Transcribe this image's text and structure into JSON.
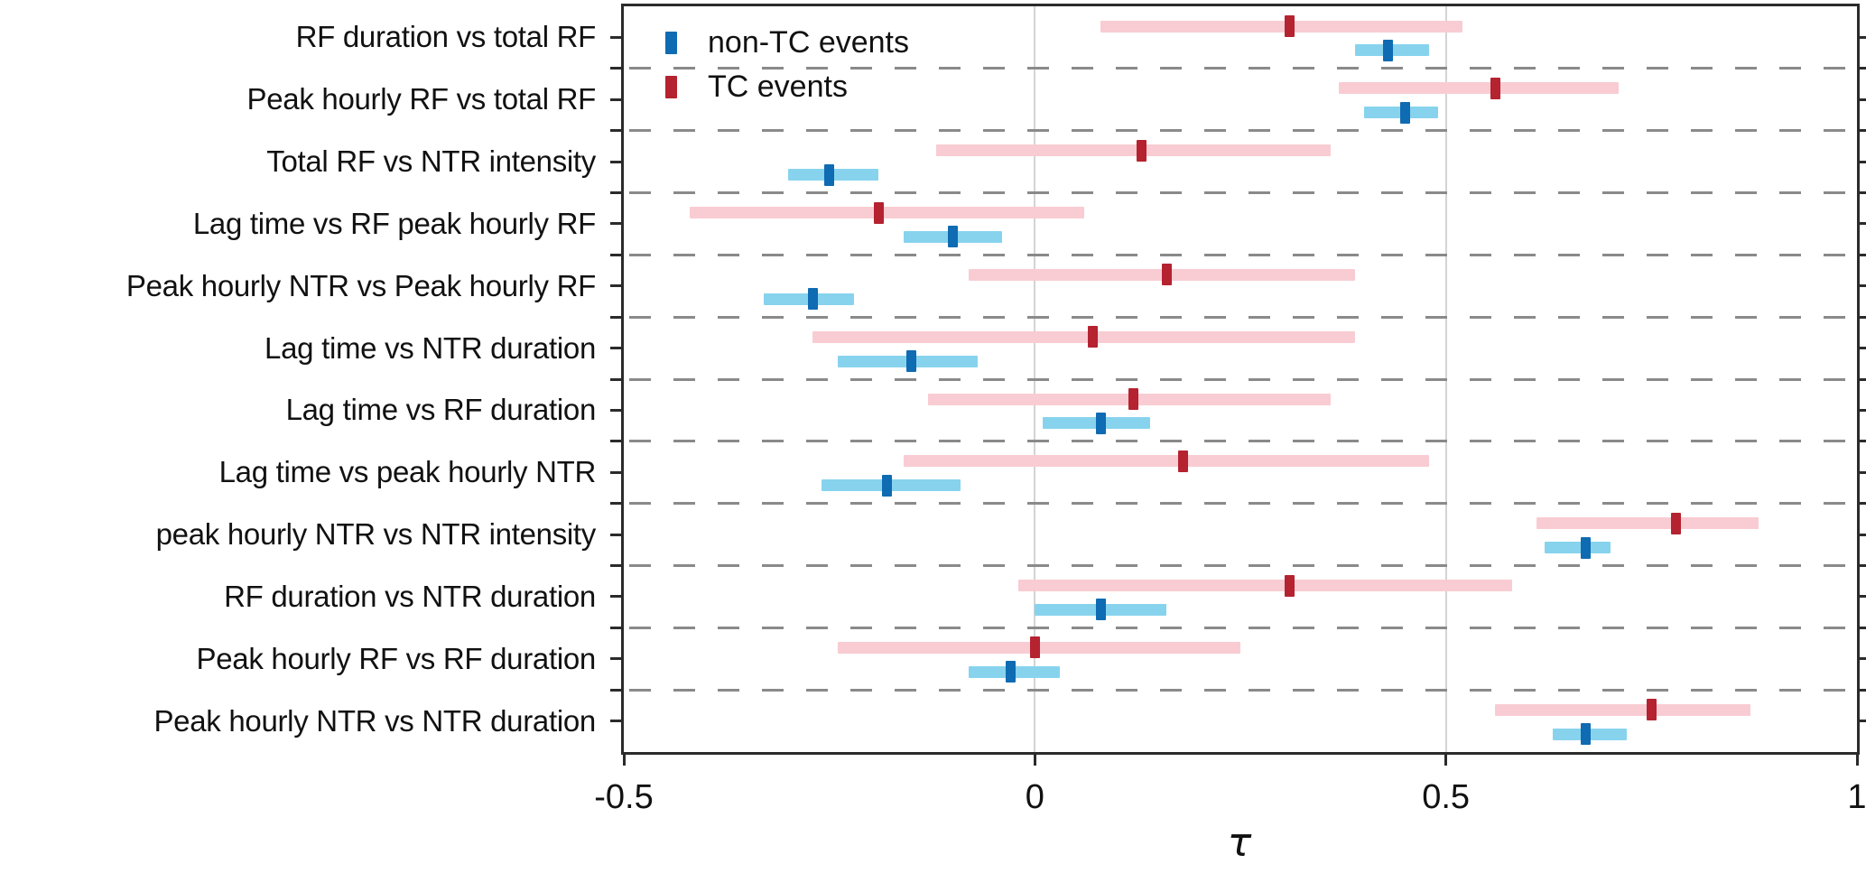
{
  "figure": {
    "xlabel": "τ",
    "x_tick_labels": [
      "-0.5",
      "0",
      "0.5",
      "1"
    ]
  },
  "legend": {
    "items": [
      {
        "label": "non-TC events",
        "color": "#0f6bb2"
      },
      {
        "label": "TC events",
        "color": "#b52230"
      }
    ]
  },
  "colors": {
    "tc_marker": "#b52230",
    "tc_band": "#f8ccd2",
    "non_tc_marker": "#0f6bb2",
    "non_tc_band": "#87d3ee",
    "grid": "#d4d4d4",
    "row_separator": "#8a8a8a",
    "spine": "#2b2b2b"
  },
  "chart_data": {
    "type": "scatter",
    "subtype": "dot_with_confidence_interval",
    "title": "",
    "xlabel": "τ",
    "ylabel": "",
    "xlim": [
      -0.5,
      1
    ],
    "x_ticks": [
      -0.5,
      0,
      0.5,
      1
    ],
    "grid_x": [
      0,
      0.5
    ],
    "grid_on": true,
    "legend_position": "inside-top-left",
    "categories": [
      "RF duration vs total RF",
      "Peak hourly RF vs total RF",
      "Total RF vs NTR intensity",
      "Lag time vs RF peak hourly RF",
      "Peak hourly NTR vs Peak hourly RF",
      "Lag time vs NTR duration",
      "Lag time vs RF duration",
      "Lag time vs peak hourly NTR",
      "peak hourly NTR vs NTR intensity",
      "RF duration vs NTR duration",
      "Peak hourly RF vs RF duration",
      "Peak hourly NTR vs NTR duration"
    ],
    "series": [
      {
        "name": "TC events",
        "line_position": "upper",
        "color": "#b52230",
        "band_color": "#f8ccd2",
        "values": [
          0.31,
          0.56,
          0.13,
          -0.19,
          0.16,
          0.07,
          0.12,
          0.18,
          0.78,
          0.31,
          0.0,
          0.75
        ],
        "ci_low": [
          0.08,
          0.37,
          -0.12,
          -0.42,
          -0.08,
          -0.27,
          -0.13,
          -0.16,
          0.61,
          -0.02,
          -0.24,
          0.56
        ],
        "ci_high": [
          0.52,
          0.71,
          0.36,
          0.06,
          0.39,
          0.39,
          0.36,
          0.48,
          0.88,
          0.58,
          0.25,
          0.87
        ]
      },
      {
        "name": "non-TC events",
        "line_position": "lower",
        "color": "#0f6bb2",
        "band_color": "#87d3ee",
        "values": [
          0.43,
          0.45,
          -0.25,
          -0.1,
          -0.27,
          -0.15,
          0.08,
          -0.18,
          0.67,
          0.08,
          -0.03,
          0.67
        ],
        "ci_low": [
          0.39,
          0.4,
          -0.3,
          -0.16,
          -0.33,
          -0.24,
          0.01,
          -0.26,
          0.62,
          0.0,
          -0.08,
          0.63
        ],
        "ci_high": [
          0.48,
          0.49,
          -0.19,
          -0.04,
          -0.22,
          -0.07,
          0.14,
          -0.09,
          0.7,
          0.16,
          0.03,
          0.72
        ]
      }
    ]
  }
}
